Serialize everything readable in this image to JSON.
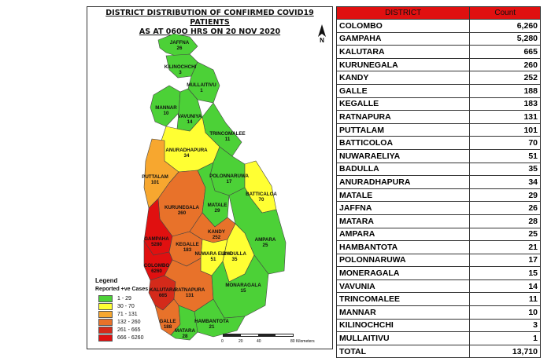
{
  "map": {
    "title_line1": "DISTRICT DISTRIBUTION OF CONFIRMED COVID19 PATIENTS",
    "title_line2": "AS AT 060O HRS ON 20 NOV 2020",
    "north_label": "N",
    "north_icon": "north-arrow-icon",
    "districts": [
      {
        "name": "JAFFNA",
        "value": "26"
      },
      {
        "name": "KILINOCHCHI",
        "value": "3"
      },
      {
        "name": "MULLAITIVU",
        "value": "1"
      },
      {
        "name": "MANNAR",
        "value": "10"
      },
      {
        "name": "VAVUNIYA",
        "value": "14"
      },
      {
        "name": "TRINCOMALEE",
        "value": "11"
      },
      {
        "name": "ANURADHAPURA",
        "value": "34"
      },
      {
        "name": "PUTTALAM",
        "value": "101"
      },
      {
        "name": "POLONNARUWA",
        "value": "17"
      },
      {
        "name": "BATTICALOA",
        "value": "70"
      },
      {
        "name": "KURUNEGALA",
        "value": "260"
      },
      {
        "name": "MATALE",
        "value": "29"
      },
      {
        "name": "GAMPAHA",
        "value": "5280"
      },
      {
        "name": "KANDY",
        "value": "252"
      },
      {
        "name": "KEGALLE",
        "value": "183"
      },
      {
        "name": "AMPARA",
        "value": "25"
      },
      {
        "name": "NUWARA ELIYA",
        "value": "51"
      },
      {
        "name": "BADULLA",
        "value": "35"
      },
      {
        "name": "COLOMBO",
        "value": "6260"
      },
      {
        "name": "KALUTARA",
        "value": "665"
      },
      {
        "name": "RATNAPURA",
        "value": "131"
      },
      {
        "name": "MONARAGALA",
        "value": "15"
      },
      {
        "name": "GALLE",
        "value": "188"
      },
      {
        "name": "HAMBANTOTA",
        "value": "21"
      },
      {
        "name": "MATARA",
        "value": "28"
      }
    ],
    "legend": {
      "title": "Legend",
      "subtitle": "Reported +ve Cases",
      "items": [
        {
          "label": "1 - 29",
          "color": "#4cd137"
        },
        {
          "label": "30 - 70",
          "color": "#ffff33"
        },
        {
          "label": "71 - 131",
          "color": "#f7a72f"
        },
        {
          "label": "132 - 260",
          "color": "#e8722a"
        },
        {
          "label": "261 - 665",
          "color": "#d42a1a"
        },
        {
          "label": "666 - 6260",
          "color": "#e01010"
        }
      ]
    },
    "scale": {
      "ticks": [
        "0",
        "20",
        "40",
        "",
        "80 Kilometers"
      ]
    }
  },
  "table": {
    "headers": [
      "DISTRICT",
      "Count"
    ],
    "header_color": "#e01010",
    "rows": [
      [
        "COLOMBO",
        "6,260"
      ],
      [
        "GAMPAHA",
        "5,280"
      ],
      [
        "KALUTARA",
        "665"
      ],
      [
        "KURUNEGALA",
        "260"
      ],
      [
        "KANDY",
        "252"
      ],
      [
        "GALLE",
        "188"
      ],
      [
        "KEGALLE",
        "183"
      ],
      [
        "RATNAPURA",
        "131"
      ],
      [
        "PUTTALAM",
        "101"
      ],
      [
        "BATTICOLOA",
        "70"
      ],
      [
        "NUWARAELIYA",
        "51"
      ],
      [
        "BADULLA",
        "35"
      ],
      [
        "ANURADHAPURA",
        "34"
      ],
      [
        "MATALE",
        "29"
      ],
      [
        "JAFFNA",
        "26"
      ],
      [
        "MATARA",
        "28"
      ],
      [
        "AMPARA",
        "25"
      ],
      [
        "HAMBANTOTA",
        "21"
      ],
      [
        "POLONNARUWA",
        "17"
      ],
      [
        "MONERAGALA",
        "15"
      ],
      [
        "VAVUNIA",
        "14"
      ],
      [
        "TRINCOMALEE",
        "11"
      ],
      [
        "MANNAR",
        "10"
      ],
      [
        "KILINOCHCHI",
        "3"
      ],
      [
        "MULLAITIVU",
        "1"
      ],
      [
        "TOTAL",
        "13,710"
      ]
    ]
  }
}
